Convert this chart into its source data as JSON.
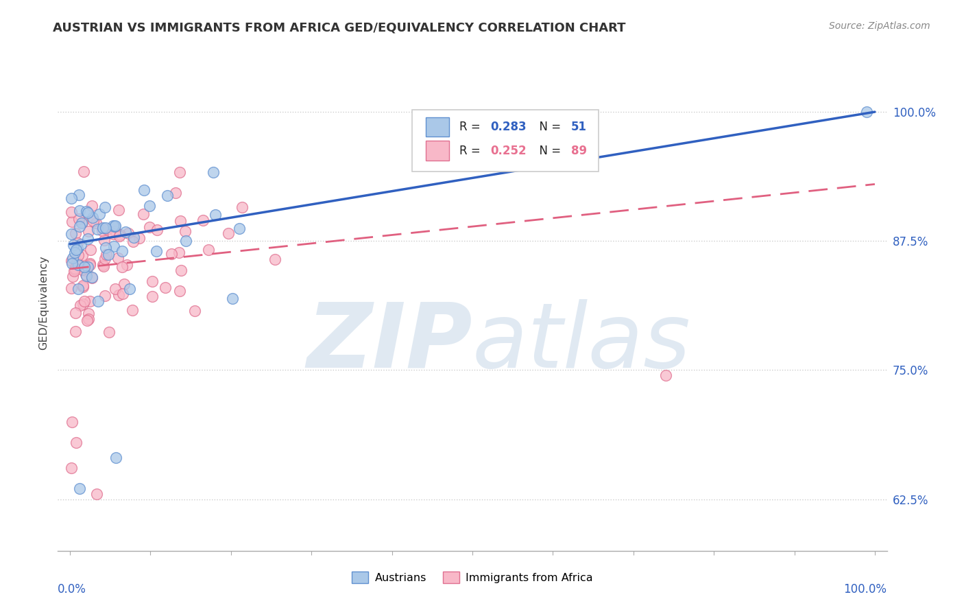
{
  "title": "AUSTRIAN VS IMMIGRANTS FROM AFRICA GED/EQUIVALENCY CORRELATION CHART",
  "source": "Source: ZipAtlas.com",
  "ylabel": "GED/Equivalency",
  "y_ticks": [
    0.625,
    0.75,
    0.875,
    1.0
  ],
  "y_tick_labels": [
    "62.5%",
    "75.0%",
    "87.5%",
    "100.0%"
  ],
  "blue_line_color": "#3060c0",
  "pink_line_color": "#e06080",
  "blue_scatter_fill": "#aac8e8",
  "blue_scatter_edge": "#6090d0",
  "pink_scatter_fill": "#f8b8c8",
  "pink_scatter_edge": "#e07090",
  "watermark_color": "#c8d8e8",
  "background_color": "#ffffff",
  "grid_color": "#cccccc",
  "legend_R_color": "#3060c0",
  "legend_N_color": "#3060c0",
  "legend_pink_R_color": "#e87090",
  "legend_pink_N_color": "#e87090",
  "axis_label_color": "#3060c0",
  "title_color": "#333333",
  "source_color": "#888888",
  "au_intercept": 0.872,
  "au_slope": 0.128,
  "af_intercept": 0.845,
  "af_slope": 0.095
}
